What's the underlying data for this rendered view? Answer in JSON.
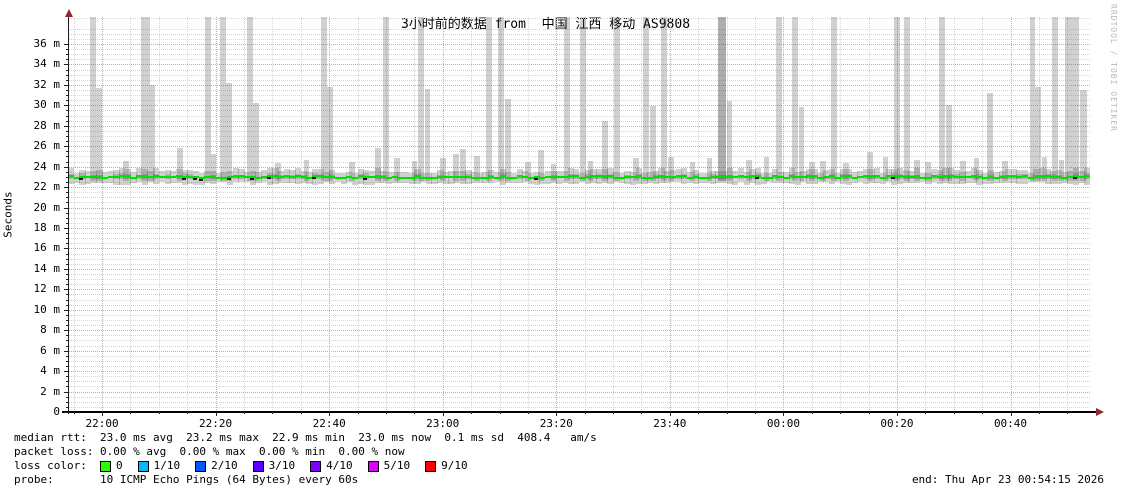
{
  "title": "3小时前的数据 from  中国 江西 移动 AS9808",
  "watermark": "RRDTOOL / TOBI OETIKER",
  "footer": {
    "end": "end: Thu Apr 23 00:54:15 2026"
  },
  "legend": {
    "rows": [
      {
        "label": "median rtt:",
        "text": "23.0 ms avg  23.2 ms max  22.9 ms min  23.0 ms now  0.1 ms sd  408.4   am/s"
      },
      {
        "label": "packet loss:",
        "text": "0.00 % avg  0.00 % max  0.00 % min  0.00 % now"
      },
      {
        "label": "loss color:"
      },
      {
        "label": "probe:",
        "text": "10 ICMP Echo Pings (64 Bytes) every 60s"
      }
    ],
    "loss_items": [
      {
        "color": "#26ff00",
        "text": "0"
      },
      {
        "color": "#00b8ff",
        "text": "1/10"
      },
      {
        "color": "#0059ff",
        "text": "2/10"
      },
      {
        "color": "#5e00ff",
        "text": "3/10"
      },
      {
        "color": "#7e00ff",
        "text": "4/10"
      },
      {
        "color": "#dd00ff",
        "text": "5/10"
      },
      {
        "color": "#ff0000",
        "text": "9/10"
      }
    ]
  },
  "chart_data": {
    "type": "area",
    "subtype": "smokeping-latency",
    "title": "3小时前的数据 from  中国 江西 移动 AS9808",
    "ylabel": "Seconds",
    "y_unit": "m (milliseconds)",
    "ylim": [
      0,
      38.8
    ],
    "y_major_step_ms": 2,
    "y_minor_step_ms": 0.5,
    "x_minutes_total": 180,
    "x_start": "21:54",
    "x_end": "00:54",
    "x_minor_step_min": 5,
    "x_major_step_min": 20,
    "grid": true,
    "median_rtt": {
      "avg": 23.0,
      "max": 23.2,
      "min": 22.9,
      "now": 23.0,
      "sd": 0.1,
      "color": "#00e100"
    },
    "packet_loss": {
      "avg": 0.0,
      "max": 0.0,
      "min": 0.0,
      "now": 0.0
    },
    "smoke_band": {
      "low_ms": 22.4,
      "high_ms": 23.9,
      "base_ms": 22.6
    },
    "y_ticks": [
      {
        "v": 0,
        "label": "0"
      },
      {
        "v": 2,
        "label": "2 m"
      },
      {
        "v": 4,
        "label": "4 m"
      },
      {
        "v": 6,
        "label": "6 m"
      },
      {
        "v": 8,
        "label": "8 m"
      },
      {
        "v": 10,
        "label": "10 m"
      },
      {
        "v": 12,
        "label": "12 m"
      },
      {
        "v": 14,
        "label": "14 m"
      },
      {
        "v": 16,
        "label": "16 m"
      },
      {
        "v": 18,
        "label": "18 m"
      },
      {
        "v": 20,
        "label": "20 m"
      },
      {
        "v": 22,
        "label": "22 m"
      },
      {
        "v": 24,
        "label": "24 m"
      },
      {
        "v": 26,
        "label": "26 m"
      },
      {
        "v": 28,
        "label": "28 m"
      },
      {
        "v": 30,
        "label": "30 m"
      },
      {
        "v": 32,
        "label": "32 m"
      },
      {
        "v": 34,
        "label": "34 m"
      },
      {
        "v": 36,
        "label": "36 m"
      }
    ],
    "x_ticks": [
      {
        "m": 6,
        "label": "22:00"
      },
      {
        "m": 26,
        "label": "22:20"
      },
      {
        "m": 46,
        "label": "22:40"
      },
      {
        "m": 66,
        "label": "23:00"
      },
      {
        "m": 86,
        "label": "23:20"
      },
      {
        "m": 106,
        "label": "23:40"
      },
      {
        "m": 126,
        "label": "00:00"
      },
      {
        "m": 146,
        "label": "00:20"
      },
      {
        "m": 166,
        "label": "00:40"
      }
    ],
    "spikes": [
      {
        "t": 4.4,
        "v": 38.8
      },
      {
        "t": 5.5,
        "v": 31.7
      },
      {
        "t": 10.2,
        "v": 24.6
      },
      {
        "t": 13.7,
        "v": 38.8,
        "w": 1.6
      },
      {
        "t": 14.9,
        "v": 32
      },
      {
        "t": 19.7,
        "v": 25.8
      },
      {
        "t": 24.7,
        "v": 38.8
      },
      {
        "t": 25.6,
        "v": 25.2
      },
      {
        "t": 27.3,
        "v": 38.8
      },
      {
        "t": 28.4,
        "v": 32.2
      },
      {
        "t": 32.1,
        "v": 38.8
      },
      {
        "t": 33.1,
        "v": 30.2
      },
      {
        "t": 37,
        "v": 24.4
      },
      {
        "t": 42,
        "v": 24.7
      },
      {
        "t": 45.1,
        "v": 38.8
      },
      {
        "t": 46.2,
        "v": 31.8
      },
      {
        "t": 50,
        "v": 24.5
      },
      {
        "t": 54.6,
        "v": 25.8
      },
      {
        "t": 56,
        "v": 38.8
      },
      {
        "t": 58,
        "v": 24.8
      },
      {
        "t": 61,
        "v": 24.6
      },
      {
        "t": 62.2,
        "v": 38.8
      },
      {
        "t": 63.3,
        "v": 31.6
      },
      {
        "t": 66,
        "v": 24.8
      },
      {
        "t": 68.3,
        "v": 25.2
      },
      {
        "t": 69.6,
        "v": 25.7
      },
      {
        "t": 72,
        "v": 25
      },
      {
        "t": 74.1,
        "v": 38.8
      },
      {
        "t": 76.3,
        "v": 38.8
      },
      {
        "t": 77.5,
        "v": 30.6
      },
      {
        "t": 81,
        "v": 24.5
      },
      {
        "t": 83.3,
        "v": 25.6
      },
      {
        "t": 85.5,
        "v": 24.3
      },
      {
        "t": 87.9,
        "v": 38.8
      },
      {
        "t": 90.7,
        "v": 38.8
      },
      {
        "t": 92,
        "v": 24.6
      },
      {
        "t": 94.6,
        "v": 28.5
      },
      {
        "t": 96.7,
        "v": 38.8
      },
      {
        "t": 100,
        "v": 24.8
      },
      {
        "t": 101.8,
        "v": 38.8
      },
      {
        "t": 103,
        "v": 29.9
      },
      {
        "t": 105,
        "v": 38.8
      },
      {
        "t": 106.2,
        "v": 24.9
      },
      {
        "t": 110,
        "v": 24.5
      },
      {
        "t": 113,
        "v": 24.8
      },
      {
        "t": 115.2,
        "v": 38.8,
        "w": 1.5,
        "s": 2
      },
      {
        "t": 116.5,
        "v": 30.4
      },
      {
        "t": 120,
        "v": 24.7
      },
      {
        "t": 123,
        "v": 24.9
      },
      {
        "t": 125.2,
        "v": 38.8
      },
      {
        "t": 128,
        "v": 38.8
      },
      {
        "t": 129.2,
        "v": 29.8
      },
      {
        "t": 131,
        "v": 24.5
      },
      {
        "t": 133,
        "v": 24.6
      },
      {
        "t": 134.9,
        "v": 38.8
      },
      {
        "t": 137,
        "v": 24.4
      },
      {
        "t": 141.2,
        "v": 25.4
      },
      {
        "t": 144,
        "v": 24.9
      },
      {
        "t": 146,
        "v": 38.8
      },
      {
        "t": 147.8,
        "v": 38.8
      },
      {
        "t": 149.5,
        "v": 24.7
      },
      {
        "t": 151.5,
        "v": 24.5
      },
      {
        "t": 153.9,
        "v": 38.8
      },
      {
        "t": 155.2,
        "v": 30
      },
      {
        "t": 157.6,
        "v": 24.6
      },
      {
        "t": 160,
        "v": 24.8
      },
      {
        "t": 162.4,
        "v": 31.2
      },
      {
        "t": 165,
        "v": 24.6
      },
      {
        "t": 169.9,
        "v": 38.8
      },
      {
        "t": 170.9,
        "v": 31.8
      },
      {
        "t": 172,
        "v": 24.9
      },
      {
        "t": 173.8,
        "v": 38.8
      },
      {
        "t": 175,
        "v": 24.7
      },
      {
        "t": 176.8,
        "v": 38.8,
        "w": 2.4
      },
      {
        "t": 178.9,
        "v": 31.5,
        "w": 1.3
      }
    ]
  }
}
